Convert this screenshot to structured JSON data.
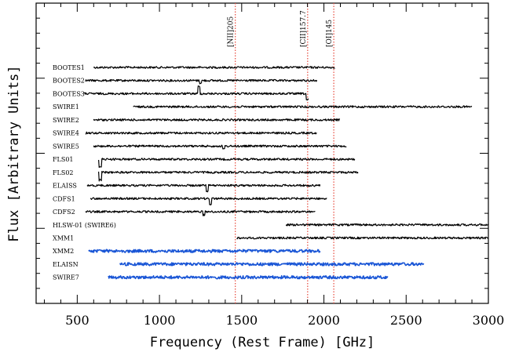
{
  "chart_data": {
    "type": "line",
    "xlabel": "Frequency (Rest Frame) [GHz]",
    "ylabel": "Flux [Arbitrary Units]",
    "xlim": [
      250,
      3000
    ],
    "xticks": [
      500,
      1000,
      1500,
      2000,
      2500,
      3000
    ],
    "x_tick_labels": [
      "500",
      "1000",
      "1500",
      "2000",
      "2500",
      "3000"
    ],
    "reference_lines": [
      {
        "label": "[NII]205",
        "x": 1461,
        "color": "#e8564a",
        "style": "dotted"
      },
      {
        "label": "[CII]157.7",
        "x": 1901,
        "color": "#e8564a",
        "style": "dotted"
      },
      {
        "label": "[OI]145",
        "x": 2060,
        "color": "#e8564a",
        "style": "dotted"
      }
    ],
    "series": [
      {
        "name": "BOOTES1",
        "color": "#000000",
        "x_range": [
          600,
          2070
        ],
        "features": []
      },
      {
        "name": "BOOTES2",
        "color": "#000000",
        "x_range": [
          550,
          1960
        ],
        "features": [
          {
            "x": 1250,
            "depth": 3
          }
        ]
      },
      {
        "name": "BOOTES3",
        "color": "#000000",
        "x_range": [
          540,
          1910
        ],
        "features": [
          {
            "x": 1240,
            "depth": -9
          },
          {
            "x": 1900,
            "depth": 8
          }
        ]
      },
      {
        "name": "SWIRE1",
        "color": "#000000",
        "x_range": [
          840,
          2900
        ],
        "features": []
      },
      {
        "name": "SWIRE2",
        "color": "#000000",
        "x_range": [
          600,
          2100
        ],
        "features": []
      },
      {
        "name": "SWIRE4",
        "color": "#000000",
        "x_range": [
          550,
          1960
        ],
        "features": []
      },
      {
        "name": "SWIRE5",
        "color": "#000000",
        "x_range": [
          600,
          2140
        ],
        "features": [
          {
            "x": 1390,
            "depth": 4
          }
        ]
      },
      {
        "name": "FLS01",
        "color": "#000000",
        "x_range": [
          630,
          2190
        ],
        "features": [
          {
            "x": 640,
            "depth": 10
          }
        ]
      },
      {
        "name": "FLS02",
        "color": "#000000",
        "x_range": [
          630,
          2210
        ],
        "features": [
          {
            "x": 640,
            "depth": 10
          }
        ]
      },
      {
        "name": "ELAISS",
        "color": "#000000",
        "x_range": [
          560,
          1980
        ],
        "features": [
          {
            "x": 1290,
            "depth": 7
          }
        ]
      },
      {
        "name": "CDFS1",
        "color": "#000000",
        "x_range": [
          580,
          2020
        ],
        "features": [
          {
            "x": 1310,
            "depth": 8
          }
        ]
      },
      {
        "name": "CDFS2",
        "color": "#000000",
        "x_range": [
          550,
          1950
        ],
        "features": [
          {
            "x": 1270,
            "depth": 4
          }
        ]
      },
      {
        "name": "HLSW-01 (SWIRE6)",
        "color": "#000000",
        "x_range": [
          1770,
          3000
        ],
        "features": []
      },
      {
        "name": "XMM1",
        "color": "#000000",
        "x_range": [
          1470,
          3000
        ],
        "features": []
      },
      {
        "name": "XMM2",
        "color": "#1a56d6",
        "x_range": [
          570,
          1980
        ],
        "features": []
      },
      {
        "name": "ELAISN",
        "color": "#1a56d6",
        "x_range": [
          760,
          2610
        ],
        "features": []
      },
      {
        "name": "SWIRE7",
        "color": "#1a56d6",
        "x_range": [
          690,
          2390
        ],
        "features": []
      }
    ],
    "grid": false,
    "legend": "none"
  }
}
